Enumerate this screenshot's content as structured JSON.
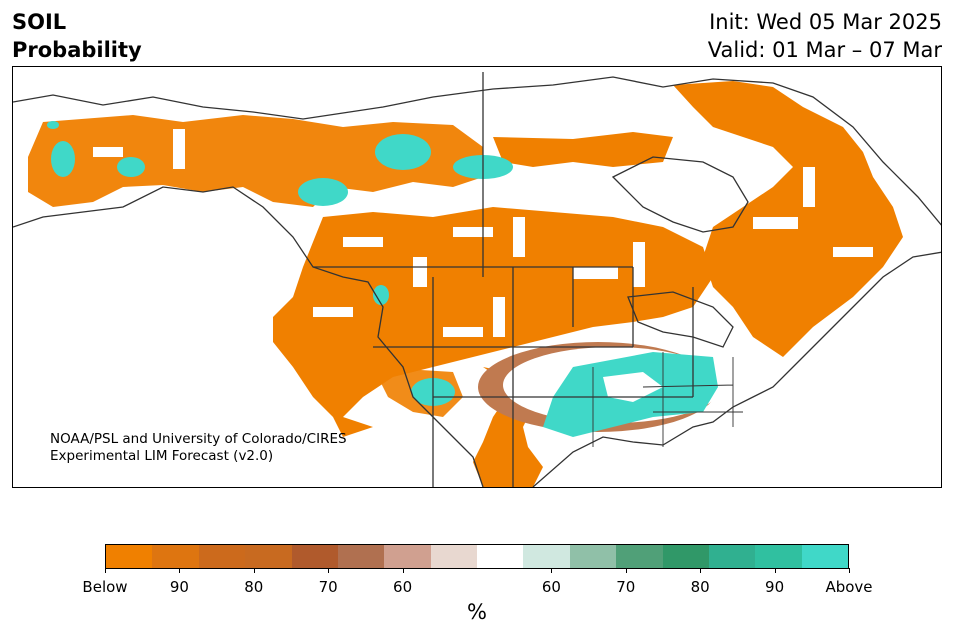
{
  "title": {
    "variable": "SOIL",
    "subtitle": "Probability"
  },
  "dates": {
    "init": "Init: Wed 05 Mar 2025",
    "valid": "Valid: 01 Mar – 07 Mar"
  },
  "credit": {
    "line1": "NOAA/PSL and University of Colorado/CIRES",
    "line2": "Experimental LIM Forecast (v2.0)"
  },
  "colorbar": {
    "unit": "%",
    "colors": [
      "#f08000",
      "#de7510",
      "#cc6a1c",
      "#c86a20",
      "#b05a2c",
      "#b07050",
      "#d0a090",
      "#e8d8d0",
      "#ffffff",
      "#d0e8e0",
      "#90c0a8",
      "#50a078",
      "#309868",
      "#30b090",
      "#30c0a0",
      "#40d8c8"
    ],
    "tick_labels": [
      "Below",
      "90",
      "80",
      "70",
      "60",
      "60",
      "70",
      "80",
      "90",
      "Above"
    ]
  },
  "colors": {
    "below": "#f08000",
    "above": "#40d8c8",
    "border": "#333333"
  }
}
